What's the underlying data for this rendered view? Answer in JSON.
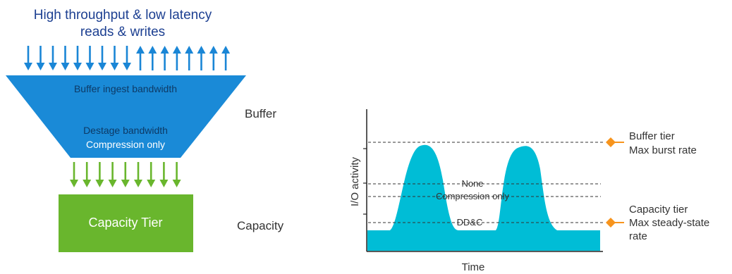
{
  "left": {
    "heading": [
      "High throughput & low latency",
      "reads & writes"
    ],
    "funnel_top_label": "Buffer ingest bandwidth",
    "funnel_bottom_label_1": "Destage bandwidth",
    "funnel_bottom_label_2": "Compression only",
    "capacity_box_label": "Capacity Tier",
    "buffer_label": "Buffer",
    "capacity_label": "Capacity",
    "down_arrows": 9,
    "up_arrows": 8,
    "destage_arrows": 9
  },
  "chart": {
    "ylabel": "I/O activity",
    "xlabel": "Time",
    "lines": {
      "max_burst": "",
      "none": "None",
      "compression_only": "Compression only",
      "ddc": "DD&C"
    },
    "annotations": {
      "buffer": [
        "Buffer tier",
        "Max burst rate"
      ],
      "capacity": [
        "Capacity tier",
        "Max steady-state",
        "rate"
      ]
    }
  },
  "colors": {
    "blue_arrow": "#1a86d6",
    "funnel": "#1a8ad7",
    "green": "#69b62d",
    "chart_fill": "#00bdd6",
    "diamond": "#f7941d",
    "heading_text": "#1c3f91",
    "text": "#333333"
  }
}
